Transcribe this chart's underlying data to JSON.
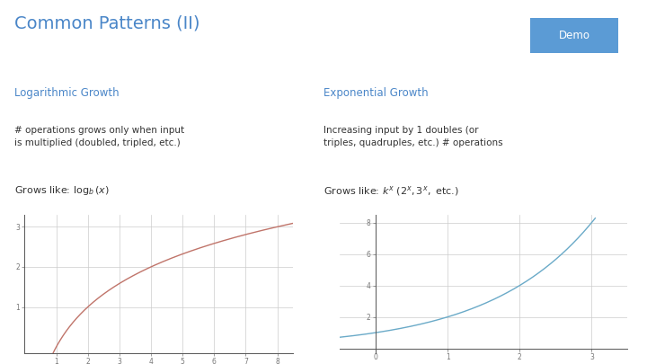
{
  "title": "Common Patterns (II)",
  "title_color": "#4a86c8",
  "title_fontsize": 14,
  "demo_label": "Demo",
  "demo_bg": "#5b9bd5",
  "demo_text_color": "#ffffff",
  "bg_color": "#ffffff",
  "section1_title": "Logarithmic Growth",
  "section1_color": "#4a86c8",
  "section1_desc1": "# operations grows only when input",
  "section1_desc2": "is multiplied (doubled, tripled, etc.)",
  "section2_title": "Exponential Growth",
  "section2_color": "#4a86c8",
  "section2_desc1": "Increasing input by 1 doubles (or",
  "section2_desc2": "triples, quadruples, etc.) # operations",
  "log_curve_color": "#c0746a",
  "exp_curve_color": "#6aaac8",
  "grid_color": "#cccccc",
  "axis_color": "#555555",
  "tick_color": "#777777",
  "log_xlim": [
    0,
    8.5
  ],
  "log_ylim": [
    -0.15,
    3.3
  ],
  "log_xticks": [
    1,
    2,
    3,
    4,
    5,
    6,
    7,
    8
  ],
  "log_yticks": [
    1,
    2,
    3
  ],
  "exp_xlim": [
    -0.5,
    3.5
  ],
  "exp_ylim": [
    -0.3,
    8.5
  ],
  "exp_xticks": [
    0,
    1,
    2,
    3
  ],
  "exp_yticks": [
    2,
    4,
    6,
    8
  ],
  "text_color": "#333333",
  "desc_fontsize": 7.5,
  "grows_fontsize": 8.0,
  "section_title_fontsize": 8.5,
  "demo_fontsize": 8.5
}
